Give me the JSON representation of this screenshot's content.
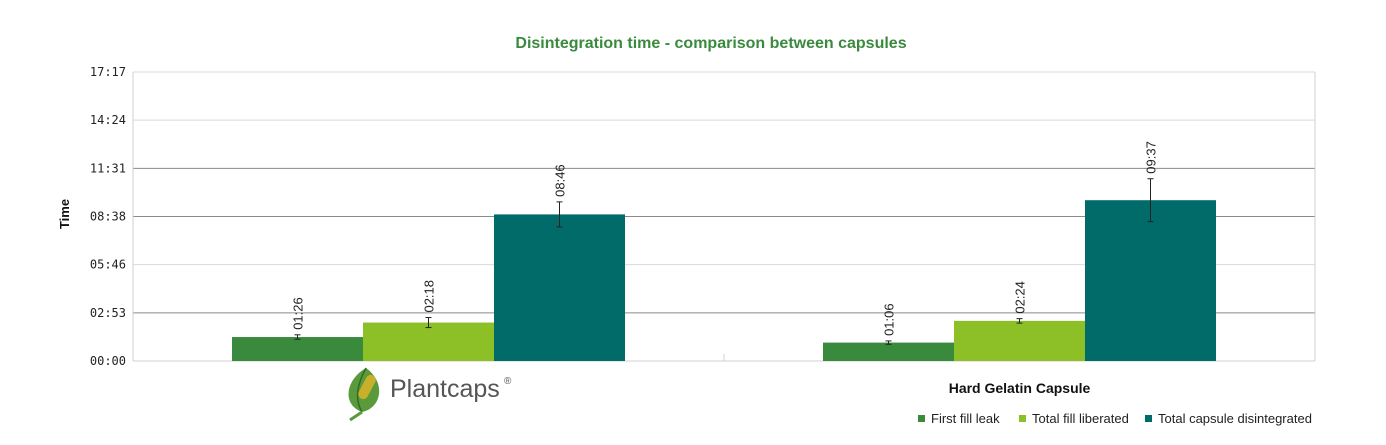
{
  "chart_data": {
    "type": "bar",
    "title": "Disintegration time - comparison between capsules",
    "ylabel": "Time",
    "xlabel": "",
    "categories": [
      "",
      "Hard Gelatin Capsule"
    ],
    "y_ticks": [
      "00:00",
      "02:53",
      "05:46",
      "08:38",
      "11:31",
      "14:24",
      "17:17"
    ],
    "ylim_seconds": [
      0,
      1037
    ],
    "grid": "horizontal",
    "legend_position": "bottom-right",
    "series": [
      {
        "name": "First fill leak",
        "color": "#3a8a3e",
        "values_seconds": [
          86,
          66
        ],
        "labels": [
          "01:26",
          "01:06"
        ],
        "error_seconds": [
          8,
          6
        ]
      },
      {
        "name": "Total fill liberated",
        "color": "#8dc026",
        "values_seconds": [
          138,
          144
        ],
        "labels": [
          "02:18",
          "02:24"
        ],
        "error_seconds": [
          18,
          8
        ]
      },
      {
        "name": "Total capsule disintegrated",
        "color": "#006b69",
        "values_seconds": [
          526,
          577
        ],
        "labels": [
          "08:46",
          "09:37"
        ],
        "error_seconds": [
          45,
          77
        ]
      }
    ],
    "title_color": "#3a8a3e"
  },
  "logo": {
    "text": "Plantcaps",
    "mark": "®",
    "icon": "leaf-capsule-icon"
  }
}
